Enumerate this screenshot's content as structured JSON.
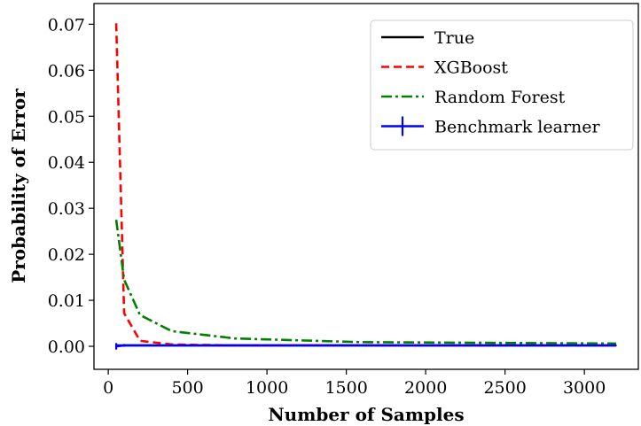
{
  "chart_data": {
    "type": "line",
    "title": "",
    "xlabel": "Number of Samples",
    "ylabel": "Probability of Error",
    "xlim": [
      -90,
      3340
    ],
    "ylim": [
      -0.005,
      0.0745
    ],
    "xticks": [
      0,
      500,
      1000,
      1500,
      2000,
      2500,
      3000
    ],
    "xtick_labels": [
      "0",
      "500",
      "1000",
      "1500",
      "2000",
      "2500",
      "3000"
    ],
    "yticks": [
      0.0,
      0.01,
      0.02,
      0.03,
      0.04,
      0.05,
      0.06,
      0.07
    ],
    "ytick_labels": [
      "0.00",
      "0.01",
      "0.02",
      "0.03",
      "0.04",
      "0.05",
      "0.06",
      "0.07"
    ],
    "grid": false,
    "legend_position": "top-right",
    "series": [
      {
        "name": "True",
        "style": "solid",
        "color": "#000000",
        "x": [
          50,
          100,
          200,
          400,
          800,
          1600,
          3200
        ],
        "y": [
          0.0002,
          0.0002,
          0.0002,
          0.0002,
          0.0002,
          0.0002,
          0.0002
        ]
      },
      {
        "name": "XGBoost",
        "style": "dashed",
        "color": "#ff0000",
        "x": [
          50,
          100,
          200,
          400,
          800,
          1600,
          3200
        ],
        "y": [
          0.0702,
          0.0072,
          0.0012,
          0.0004,
          0.0002,
          0.0002,
          0.0002
        ]
      },
      {
        "name": "Random Forest",
        "style": "dashdot",
        "color": "#008000",
        "x": [
          50,
          100,
          200,
          400,
          800,
          1600,
          3200
        ],
        "y": [
          0.0275,
          0.0145,
          0.0068,
          0.0033,
          0.0017,
          0.0009,
          0.0006
        ]
      },
      {
        "name": "Benchmark learner",
        "style": "solid-errorbar",
        "color": "#0000ff",
        "x": [
          50,
          100,
          200,
          400,
          800,
          1600,
          3200
        ],
        "y": [
          0.0,
          0.0002,
          0.0002,
          0.0002,
          0.0002,
          0.0002,
          0.0002
        ],
        "yerr": [
          0.0007,
          0.0003,
          0.0002,
          0.0001,
          0.0001,
          0.0001,
          0.0001
        ]
      }
    ]
  }
}
